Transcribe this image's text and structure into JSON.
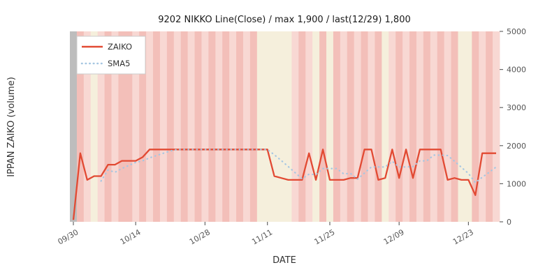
{
  "chart_data": {
    "type": "line",
    "title": "9202 NIKKO Line(Close) / max 1,900 / last(12/29) 1,800",
    "xlabel": "DATE",
    "ylabel": "IPPAN ZAIKO (volume)",
    "ylim": [
      0,
      5000
    ],
    "y_ticks": [
      0,
      1000,
      2000,
      3000,
      4000,
      5000
    ],
    "y_axis_side": "right",
    "legend_position": "upper left",
    "grid": false,
    "x_tick_labels": [
      "09/30",
      "10/14",
      "10/28",
      "11/11",
      "11/25",
      "12/09",
      "12/23"
    ],
    "x_tick_indices": [
      0,
      9,
      19,
      28,
      37,
      47,
      57
    ],
    "dates": [
      "09/30",
      "10/03",
      "10/04",
      "10/05",
      "10/06",
      "10/07",
      "10/11",
      "10/12",
      "10/13",
      "10/14",
      "10/17",
      "10/18",
      "10/19",
      "10/20",
      "10/21",
      "10/24",
      "10/25",
      "10/26",
      "10/27",
      "10/28",
      "10/31",
      "11/01",
      "11/02",
      "11/04",
      "11/07",
      "11/08",
      "11/09",
      "11/10",
      "11/11",
      "11/14",
      "11/15",
      "11/16",
      "11/17",
      "11/18",
      "11/21",
      "11/22",
      "11/24",
      "11/25",
      "11/28",
      "11/29",
      "11/30",
      "12/01",
      "12/02",
      "12/05",
      "12/06",
      "12/07",
      "12/08",
      "12/09",
      "12/12",
      "12/13",
      "12/14",
      "12/15",
      "12/16",
      "12/19",
      "12/20",
      "12/21",
      "12/22",
      "12/23",
      "12/26",
      "12/27",
      "12/28",
      "12/29"
    ],
    "series": [
      {
        "name": "ZAIKO",
        "type": "line",
        "style": "solid",
        "color": "#e24a33",
        "width": 2.3,
        "values": [
          50,
          1800,
          1100,
          1200,
          1200,
          1500,
          1500,
          1600,
          1600,
          1600,
          1700,
          1900,
          1900,
          1900,
          1900,
          1900,
          1900,
          1900,
          1900,
          1900,
          1900,
          1900,
          1900,
          1900,
          1900,
          1900,
          1900,
          1900,
          1900,
          1200,
          1150,
          1100,
          1100,
          1100,
          1800,
          1100,
          1900,
          1100,
          1100,
          1100,
          1150,
          1150,
          1900,
          1900,
          1100,
          1150,
          1900,
          1150,
          1900,
          1150,
          1900,
          1900,
          1900,
          1900,
          1100,
          1150,
          1100,
          1100,
          700,
          1800,
          1800,
          1800
        ]
      },
      {
        "name": "SMA5",
        "type": "line",
        "style": "dotted",
        "color": "#a6c7e2",
        "width": 2.2,
        "derived": "5-day moving average of ZAIKO",
        "values": [
          null,
          null,
          null,
          null,
          1070,
          1360,
          1300,
          1400,
          1480,
          1560,
          1600,
          1680,
          1740,
          1800,
          1860,
          1900,
          1900,
          1900,
          1900,
          1900,
          1900,
          1900,
          1900,
          1900,
          1900,
          1900,
          1900,
          1900,
          1900,
          1760,
          1610,
          1450,
          1290,
          1130,
          1250,
          1240,
          1400,
          1400,
          1400,
          1260,
          1270,
          1120,
          1280,
          1440,
          1440,
          1440,
          1590,
          1440,
          1440,
          1450,
          1600,
          1600,
          1750,
          1750,
          1740,
          1590,
          1430,
          1270,
          1030,
          1170,
          1300,
          1440
        ]
      }
    ],
    "background_bands": {
      "codes": "gRrcrRrRRrRrRrRrRrRrRrRrRrRcccccrRrcRcRrRrRrRcrRrRrRrRrRccRrRr",
      "palette": {
        "g": "#bdbdbd",
        "r": "#f8d8d3",
        "R": "#f3bfb9",
        "c": "#f5efdc"
      }
    },
    "annotations": {
      "max": 1900,
      "last": {
        "date": "12/29",
        "value": 1800
      }
    }
  }
}
